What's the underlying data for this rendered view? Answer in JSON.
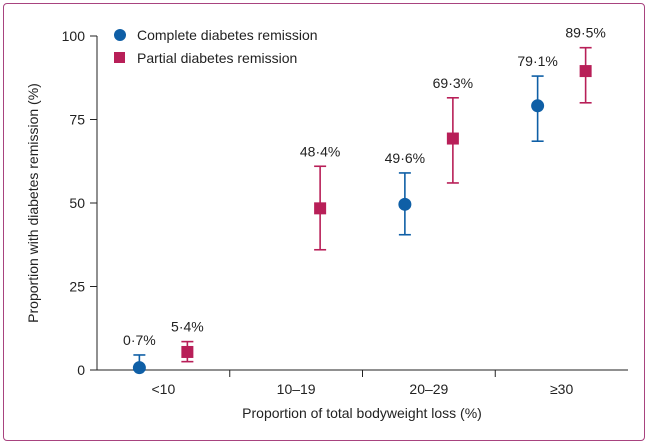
{
  "chart_data": {
    "type": "scatter",
    "title": "",
    "xlabel": "Proportion of total bodyweight loss (%)",
    "ylabel": "Proportion with diabetes remission (%)",
    "categories": [
      "<10",
      "10–19",
      "20–29",
      "≥30"
    ],
    "ylim": [
      0,
      100
    ],
    "yticks": [
      0,
      25,
      50,
      75,
      100
    ],
    "legend_position": "top-left",
    "series": [
      {
        "name": "Complete diabetes remission",
        "marker": "circle",
        "color": "#0f5fa6",
        "points": [
          {
            "category": "<10",
            "value": 0.7,
            "ci_low": 0,
            "ci_high": 4.5,
            "label": "0·7%"
          },
          {
            "category": "20–29",
            "value": 49.6,
            "ci_low": 40.5,
            "ci_high": 59,
            "label": "49·6%"
          },
          {
            "category": "≥30",
            "value": 79.1,
            "ci_low": 68.5,
            "ci_high": 88,
            "label": "79·1%"
          }
        ]
      },
      {
        "name": "Partial diabetes remission",
        "marker": "square",
        "color": "#b81f58",
        "points": [
          {
            "category": "<10",
            "value": 5.4,
            "ci_low": 2.5,
            "ci_high": 8.5,
            "label": "5·4%"
          },
          {
            "category": "10–19",
            "value": 48.4,
            "ci_low": 36,
            "ci_high": 61,
            "label": "48·4%"
          },
          {
            "category": "20–29",
            "value": 69.3,
            "ci_low": 56,
            "ci_high": 81.5,
            "label": "69·3%"
          },
          {
            "category": "≥30",
            "value": 89.5,
            "ci_low": 80,
            "ci_high": 96.5,
            "label": "89·5%"
          }
        ]
      }
    ]
  }
}
